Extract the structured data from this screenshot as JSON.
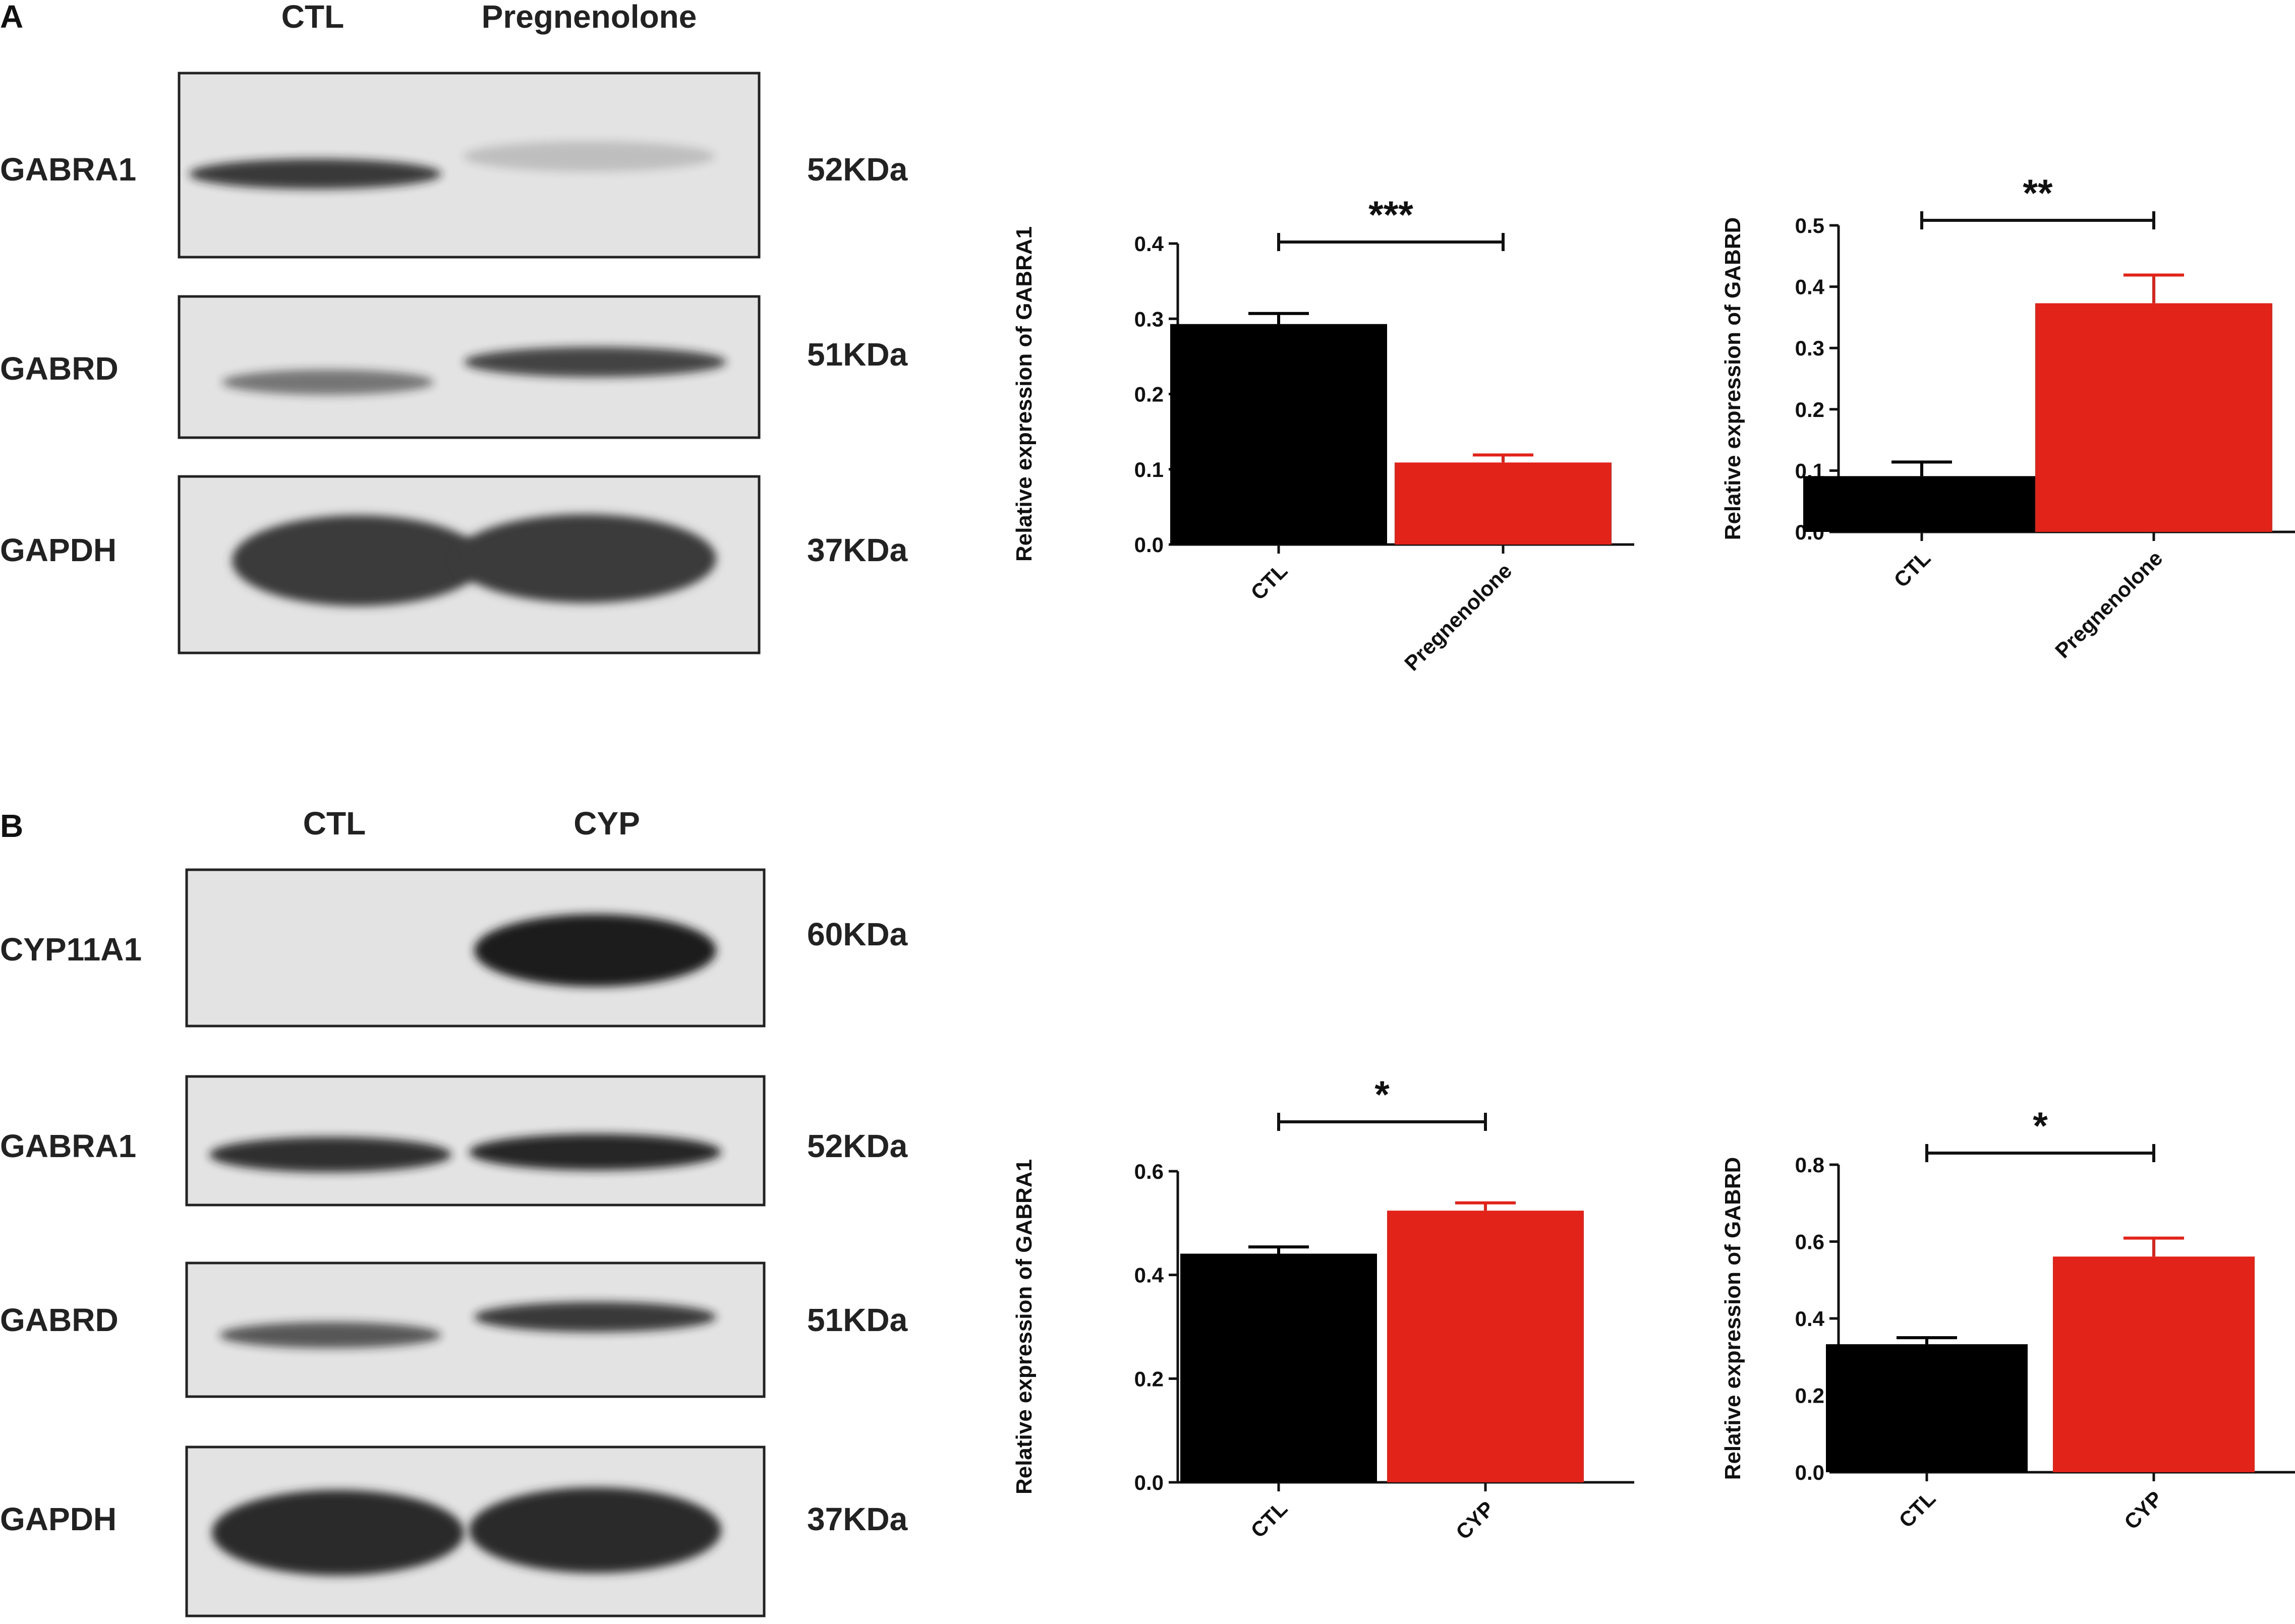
{
  "panels": [
    {
      "letter": "A",
      "blot": {
        "lanes": [
          "CTL",
          "Pregnenolone"
        ],
        "rows": [
          {
            "protein": "GABRA1",
            "weight": "52KDa",
            "band": [
              0.85,
              0.18
            ]
          },
          {
            "protein": "GABRD",
            "weight": "51KDa",
            "band": [
              0.55,
              0.8
            ]
          },
          {
            "protein": "GAPDH",
            "weight": "37KDa",
            "band": [
              1.0,
              1.0
            ]
          }
        ]
      }
    },
    {
      "letter": "B",
      "blot": {
        "lanes": [
          "CTL",
          "CYP"
        ],
        "rows": [
          {
            "protein": "CYP11A1",
            "weight": "60KDa",
            "band": [
              0.0,
              1.0
            ]
          },
          {
            "protein": "GABRA1",
            "weight": "52KDa",
            "band": [
              0.9,
              0.95
            ]
          },
          {
            "protein": "GABRD",
            "weight": "51KDa",
            "band": [
              0.7,
              0.85
            ]
          },
          {
            "protein": "GAPDH",
            "weight": "37KDa",
            "band": [
              1.0,
              1.0
            ]
          }
        ]
      }
    }
  ],
  "colors": {
    "ctl": "#000000",
    "treatment": "#e2231a"
  },
  "chart_data": [
    {
      "type": "bar",
      "panel": "A",
      "categories": [
        "CTL",
        "Pregnenolone"
      ],
      "values": [
        0.293,
        0.109
      ],
      "errors": [
        0.014,
        0.01
      ],
      "ylabel": "Relative expression of GABRA1",
      "ylim": [
        0,
        0.4
      ],
      "yticks": [
        "0.0",
        "0.1",
        "0.2",
        "0.3",
        "0.4"
      ],
      "significance": "***",
      "sig_level": 0.4
    },
    {
      "type": "bar",
      "panel": "A",
      "categories": [
        "CTL",
        "Pregnenolone"
      ],
      "values": [
        0.091,
        0.373
      ],
      "errors": [
        0.023,
        0.046
      ],
      "ylabel": "Relative expression of GABRD",
      "ylim": [
        0,
        0.5
      ],
      "yticks": [
        "0.0",
        "0.1",
        "0.2",
        "0.3",
        "0.4",
        "0.5"
      ],
      "significance": "**",
      "sig_level": 0.51
    },
    {
      "type": "bar",
      "panel": "B",
      "categories": [
        "CTL",
        "CYP"
      ],
      "values": [
        0.441,
        0.524
      ],
      "errors": [
        0.013,
        0.015
      ],
      "ylabel": "Relative expression of GABRA1",
      "ylim": [
        0,
        0.6
      ],
      "yticks": [
        "0.0",
        "0.2",
        "0.4",
        "0.6"
      ],
      "significance": "*",
      "sig_level": 0.7
    },
    {
      "type": "bar",
      "panel": "B",
      "categories": [
        "CTL",
        "CYP"
      ],
      "values": [
        0.333,
        0.561
      ],
      "errors": [
        0.017,
        0.048
      ],
      "ylabel": "Relative expression of GABRD",
      "ylim": [
        0,
        0.8
      ],
      "yticks": [
        "0.0",
        "0.2",
        "0.4",
        "0.6",
        "0.8"
      ],
      "significance": "*",
      "sig_level": 0.82
    }
  ]
}
